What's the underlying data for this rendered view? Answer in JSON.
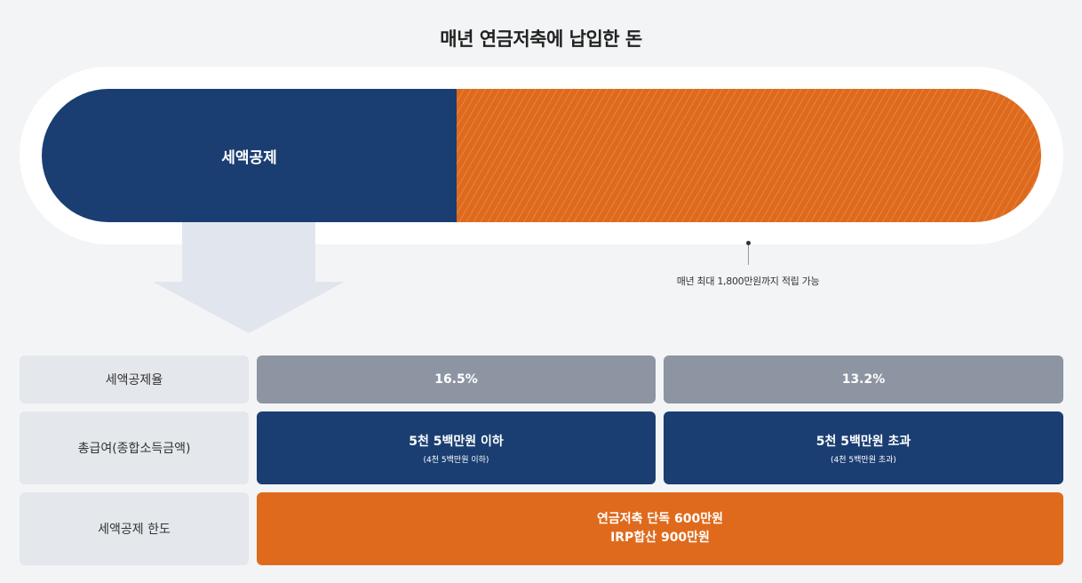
{
  "title": "매년 연금저축에 납입한 돈",
  "bar": {
    "deduction_label": "세액공제"
  },
  "note": "매년 최대 1,800만원까지 적립 가능",
  "table": {
    "rows": [
      {
        "label": "세액공제율",
        "cells": [
          {
            "main": "16.5%"
          },
          {
            "main": "13.2%"
          }
        ]
      },
      {
        "label": "총급여(종합소득금액)",
        "cells": [
          {
            "main": "5천 5백만원 이하",
            "sub": "(4천 5백만원 이하)"
          },
          {
            "main": "5천 5백만원 초과",
            "sub": "(4천 5백만원 초과)"
          }
        ]
      },
      {
        "label": "세액공제 한도",
        "merged": [
          "연금저축 단독 600만원",
          "IRP합산 900만원"
        ]
      }
    ]
  },
  "colors": {
    "navy": "#1a3e72",
    "orange": "#df6a1c",
    "gray": "#8d95a3",
    "label_bg": "#e4e7ec"
  }
}
